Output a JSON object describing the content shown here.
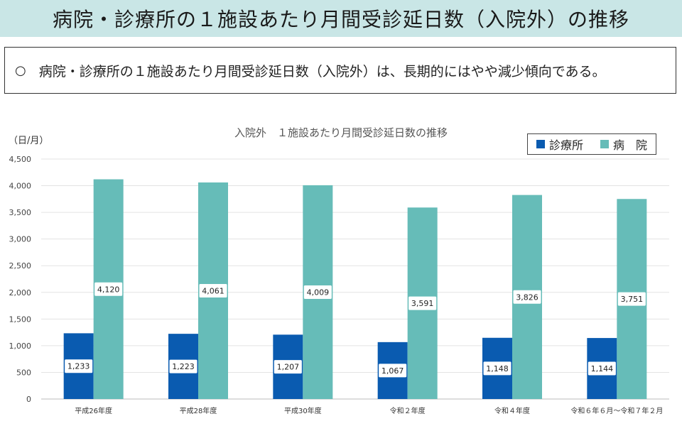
{
  "header": {
    "title": "病院・診療所の１施設あたり月間受診延日数（入院外）の推移"
  },
  "summary": {
    "bullet": "○",
    "text": "病院・診療所の１施設あたり月間受診延日数（入院外）は、長期的にはやや減少傾向である。"
  },
  "colors": {
    "clinic": "#0a5bb0",
    "hospital": "#66bcb8",
    "title_bg": "#c9e6e6"
  },
  "chart_data": {
    "type": "bar",
    "title": "入院外　１施設あたり月間受診延日数の推移",
    "ylabel": "（日/月）",
    "ylim": [
      0,
      4500
    ],
    "yticks": [
      "0",
      "500",
      "1,000",
      "1,500",
      "2,000",
      "2,500",
      "3,000",
      "3,500",
      "4,000",
      "4,500"
    ],
    "ytick_values": [
      0,
      500,
      1000,
      1500,
      2000,
      2500,
      3000,
      3500,
      4000,
      4500
    ],
    "grid": true,
    "legend_position": "top-right",
    "categories": [
      "平成26年度",
      "平成28年度",
      "平成30年度",
      "令和２年度",
      "令和４年度",
      "令和６年６月～令和７年２月"
    ],
    "series": [
      {
        "name": "診療所",
        "values": [
          1233,
          1223,
          1207,
          1067,
          1148,
          1144
        ],
        "labels": [
          "1,233",
          "1,223",
          "1,207",
          "1,067",
          "1,148",
          "1,144"
        ]
      },
      {
        "name": "病　院",
        "values": [
          4120,
          4061,
          4009,
          3591,
          3826,
          3751
        ],
        "labels": [
          "4,120",
          "4,061",
          "4,009",
          "3,591",
          "3,826",
          "3,751"
        ]
      }
    ]
  }
}
